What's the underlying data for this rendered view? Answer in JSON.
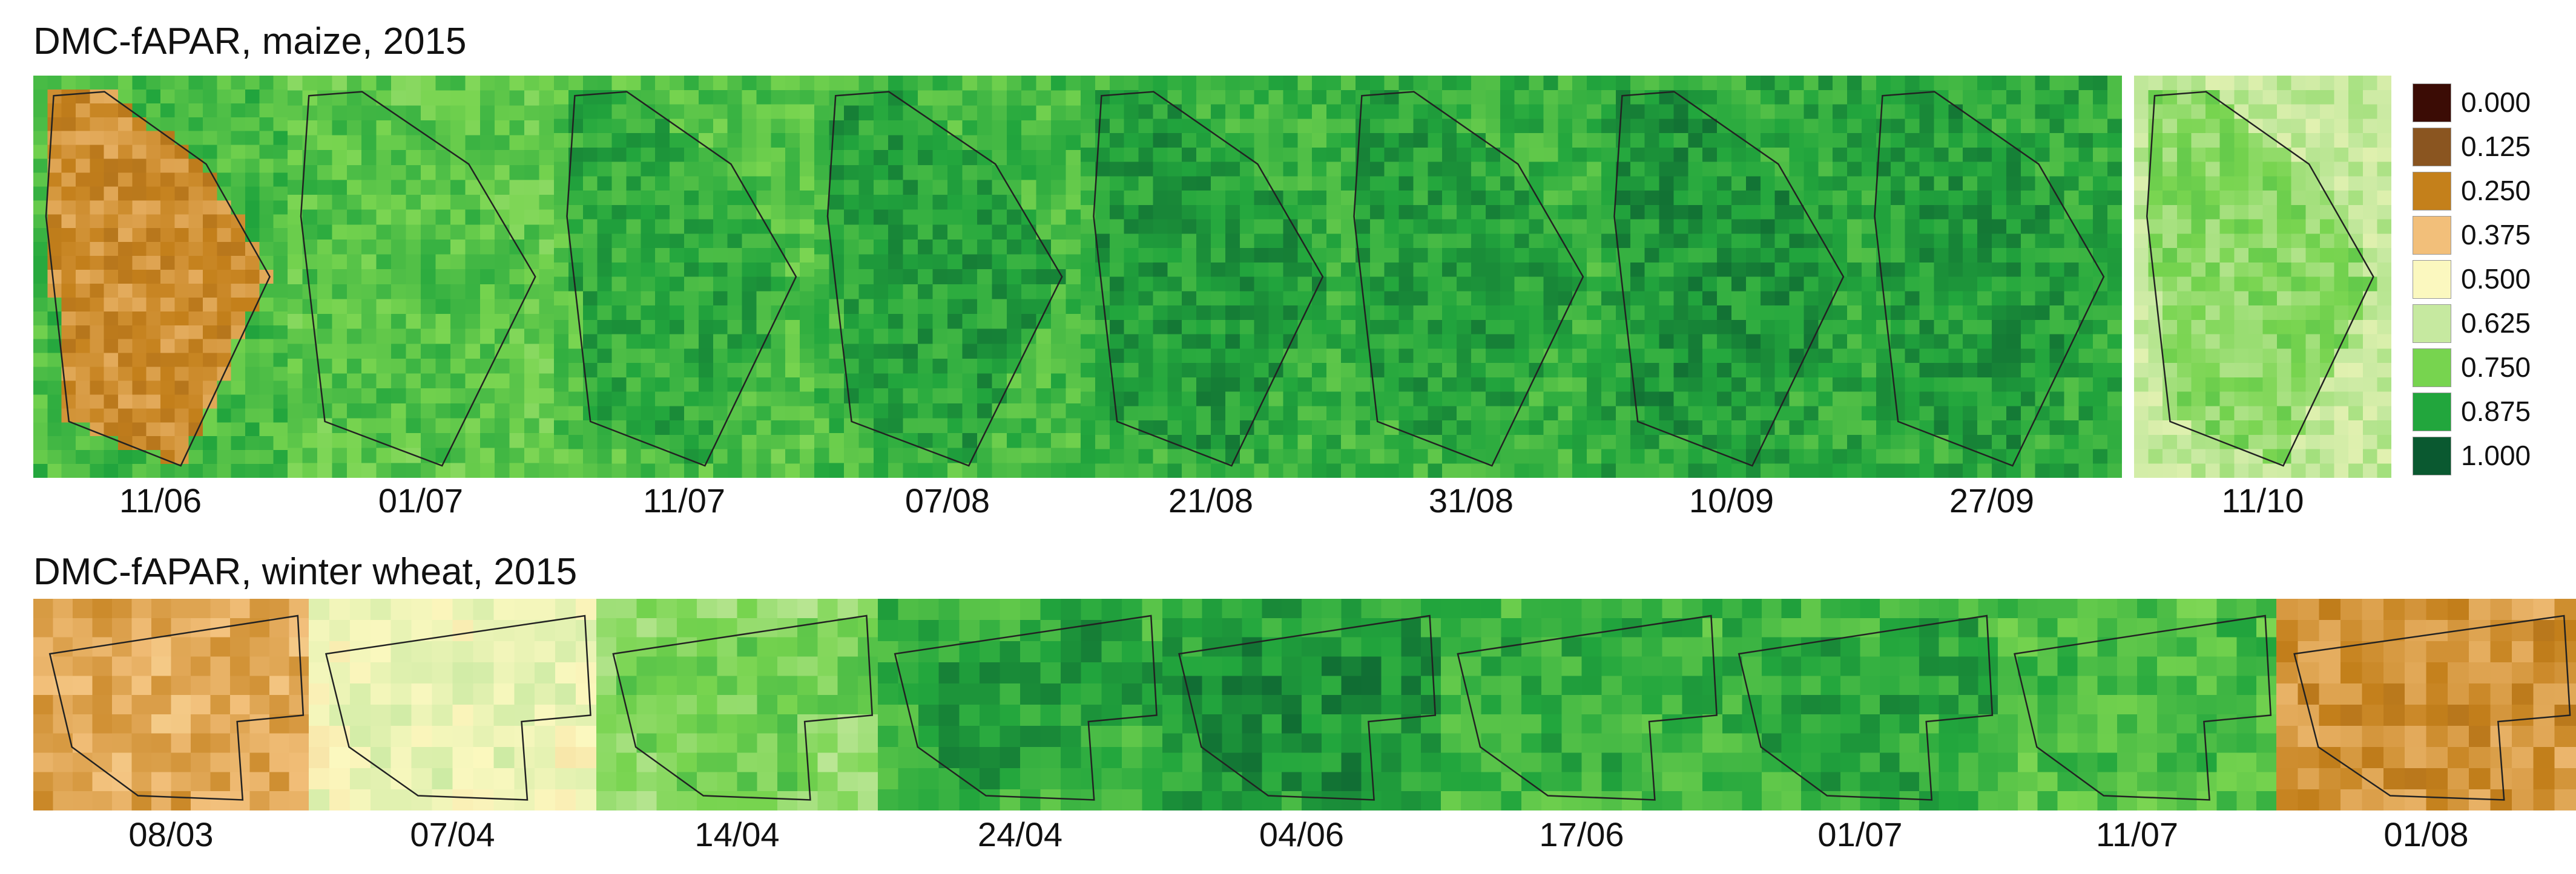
{
  "rows": [
    {
      "title": "DMC-fAPAR, maize, 2015",
      "panels": [
        {
          "date": "11/06",
          "mean_fapar": 0.28,
          "edge_fapar": 0.82
        },
        {
          "date": "01/07",
          "mean_fapar": 0.8,
          "edge_fapar": 0.78
        },
        {
          "date": "11/07",
          "mean_fapar": 0.86,
          "edge_fapar": 0.8
        },
        {
          "date": "07/08",
          "mean_fapar": 0.88,
          "edge_fapar": 0.82
        },
        {
          "date": "21/08",
          "mean_fapar": 0.89,
          "edge_fapar": 0.84
        },
        {
          "date": "31/08",
          "mean_fapar": 0.88,
          "edge_fapar": 0.84
        },
        {
          "date": "10/09",
          "mean_fapar": 0.9,
          "edge_fapar": 0.86
        },
        {
          "date": "27/09",
          "mean_fapar": 0.89,
          "edge_fapar": 0.86
        },
        {
          "date": "11/10",
          "mean_fapar": 0.72,
          "edge_fapar": 0.62
        }
      ]
    },
    {
      "title": "DMC-fAPAR, winter wheat, 2015",
      "panels": [
        {
          "date": "08/03",
          "mean_fapar": 0.34,
          "edge_fapar": 0.32
        },
        {
          "date": "07/04",
          "mean_fapar": 0.55,
          "edge_fapar": 0.52
        },
        {
          "date": "14/04",
          "mean_fapar": 0.76,
          "edge_fapar": 0.7
        },
        {
          "date": "24/04",
          "mean_fapar": 0.88,
          "edge_fapar": 0.84
        },
        {
          "date": "04/06",
          "mean_fapar": 0.91,
          "edge_fapar": 0.87
        },
        {
          "date": "17/06",
          "mean_fapar": 0.85,
          "edge_fapar": 0.82
        },
        {
          "date": "01/07",
          "mean_fapar": 0.87,
          "edge_fapar": 0.84
        },
        {
          "date": "11/07",
          "mean_fapar": 0.82,
          "edge_fapar": 0.8
        },
        {
          "date": "01/08",
          "mean_fapar": 0.28,
          "edge_fapar": 0.3
        }
      ]
    }
  ],
  "legend": {
    "entries": [
      {
        "label": "0.000",
        "color": "#3b0c05"
      },
      {
        "label": "0.125",
        "color": "#8a5520"
      },
      {
        "label": "0.250",
        "color": "#c4801b"
      },
      {
        "label": "0.375",
        "color": "#f2bf7a"
      },
      {
        "label": "0.500",
        "color": "#fbf8bf"
      },
      {
        "label": "0.625",
        "color": "#c6e9a0"
      },
      {
        "label": "0.750",
        "color": "#77d44f"
      },
      {
        "label": "0.875",
        "color": "#22a63d"
      },
      {
        "label": "1.000",
        "color": "#0a5930"
      }
    ]
  }
}
